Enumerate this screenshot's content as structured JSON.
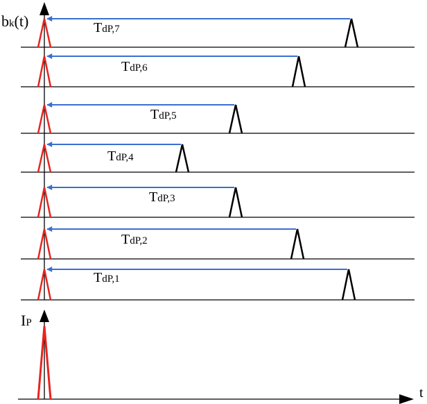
{
  "axis_labels": {
    "y_top_main": "b",
    "y_top_sub": "k",
    "y_top_suffix": "(t)",
    "y_bottom_main": "I",
    "y_bottom_sub": "P",
    "x": "t"
  },
  "delays": [
    {
      "main": "T",
      "sub": "dP,7"
    },
    {
      "main": "T",
      "sub": "dP,6"
    },
    {
      "main": "T",
      "sub": "dP,5"
    },
    {
      "main": "T",
      "sub": "dP,4"
    },
    {
      "main": "T",
      "sub": "dP,3"
    },
    {
      "main": "T",
      "sub": "dP,2"
    },
    {
      "main": "T",
      "sub": "dP,1"
    }
  ],
  "colors": {
    "arrow": "#3a6fd0",
    "reference_pulse": "#e8231f",
    "delayed_pulse": "#000000",
    "baseline": "#000000"
  }
}
